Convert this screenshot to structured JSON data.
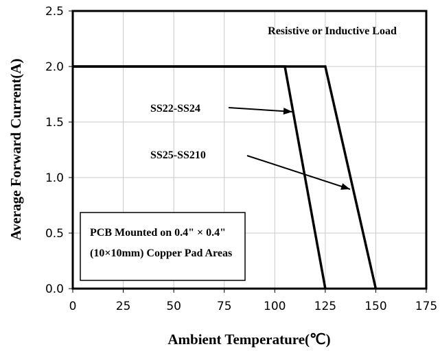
{
  "chart_data": {
    "type": "line",
    "title": "",
    "xlabel": "Ambient Temperature(℃)",
    "ylabel": "Average Forward Current(A)",
    "xlim": [
      0,
      175
    ],
    "ylim": [
      0,
      2.5
    ],
    "x_ticks": [
      "0",
      "25",
      "50",
      "75",
      "100",
      "125",
      "150",
      "175"
    ],
    "y_ticks": [
      "0.0",
      "0.5",
      "1.0",
      "1.5",
      "2.0",
      "2.5"
    ],
    "grid": true,
    "series": [
      {
        "name": "SS22-SS24",
        "x": [
          0,
          105,
          125
        ],
        "y": [
          2.0,
          2.0,
          0.0
        ]
      },
      {
        "name": "SS25-SS210",
        "x": [
          0,
          125,
          150
        ],
        "y": [
          2.0,
          2.0,
          0.0
        ]
      }
    ],
    "annotations": {
      "load_note": "Resistive or Inductive Load",
      "pcb_line1": "PCB Mounted on 0.4\" × 0.4\"",
      "pcb_line2": "(10×10mm) Copper Pad Areas"
    },
    "colors": {
      "line": "#000000",
      "grid": "#c8c8c8"
    }
  }
}
